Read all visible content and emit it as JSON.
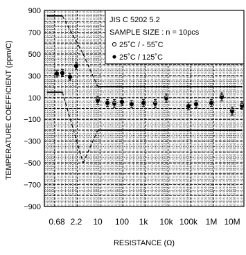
{
  "chart_data": {
    "type": "scatter",
    "xlabel": "RESISTANCE  (Ω)",
    "ylabel": "TEMPERATURE COEFFICIENT (ppm/C)",
    "ylim": [
      -900,
      900
    ],
    "yticks": [
      -900,
      -700,
      -500,
      -300,
      -100,
      100,
      300,
      500,
      700,
      900
    ],
    "ytick_labels": [
      "−900",
      "−700",
      "−500",
      "−300",
      "−100",
      "100",
      "300",
      "500",
      "700",
      "900"
    ],
    "x_categories": [
      "0.68",
      "2.2",
      "10",
      "100",
      "1k",
      "10k",
      "100k",
      "1M",
      "10M"
    ],
    "xtick_labels": [
      "0.68",
      "2.2",
      "10",
      "100",
      "1k",
      "10k",
      "100k",
      "1M",
      "10M"
    ],
    "grid": true,
    "legend": {
      "position": "top-right",
      "lines": [
        "JIS C 5202 5.2",
        "SAMPLE SIZE : n = 10pcs"
      ],
      "entries": [
        "25˚C / - 55˚C",
        "25˚C / 125˚C"
      ]
    },
    "series": [
      {
        "name": "25˚C / - 55˚C",
        "marker": "open-circle",
        "points": [
          {
            "x": "0.68",
            "y": 320
          },
          {
            "x": "1",
            "y": 325
          },
          {
            "x": "1.5",
            "y": 290
          },
          {
            "x": "2.2",
            "y": 390
          },
          {
            "x": "10",
            "y": 80
          },
          {
            "x": "22",
            "y": 50
          },
          {
            "x": "47",
            "y": 50
          },
          {
            "x": "100",
            "y": 60
          },
          {
            "x": "220",
            "y": 40
          },
          {
            "x": "1k",
            "y": 50
          },
          {
            "x": "4.7k",
            "y": 50
          },
          {
            "x": "10k",
            "y": 100
          },
          {
            "x": "100k",
            "y": 20
          },
          {
            "x": "220k",
            "y": 40
          },
          {
            "x": "1M",
            "y": 50
          },
          {
            "x": "4.7M",
            "y": 110
          },
          {
            "x": "10M",
            "y": -20
          },
          {
            "x": "22M",
            "y": 30
          }
        ]
      },
      {
        "name": "25˚C / 125˚C",
        "marker": "filled-circle",
        "points": [
          {
            "x": "0.68",
            "y": 320
          },
          {
            "x": "1",
            "y": 325
          },
          {
            "x": "1.5",
            "y": 290
          },
          {
            "x": "2.2",
            "y": 390
          },
          {
            "x": "10",
            "y": 70
          },
          {
            "x": "22",
            "y": 50
          },
          {
            "x": "47",
            "y": 40
          },
          {
            "x": "100",
            "y": 60
          },
          {
            "x": "220",
            "y": 40
          },
          {
            "x": "1k",
            "y": 50
          },
          {
            "x": "4.7k",
            "y": 40
          },
          {
            "x": "10k",
            "y": 90
          },
          {
            "x": "100k",
            "y": 20
          },
          {
            "x": "220k",
            "y": 40
          },
          {
            "x": "1M",
            "y": 50
          },
          {
            "x": "4.7M",
            "y": 100
          },
          {
            "x": "10M",
            "y": -30
          },
          {
            "x": "22M",
            "y": 20
          }
        ]
      }
    ],
    "spec_limits": {
      "upper": [
        {
          "x": "0.47",
          "y": 850
        },
        {
          "x": "1",
          "y": 850
        },
        {
          "x": "3.3",
          "y": 500
        },
        {
          "x": "10",
          "y": 200
        },
        {
          "x": "22M",
          "y": 200
        }
      ],
      "lower": [
        {
          "x": "0.47",
          "y": 150
        },
        {
          "x": "1",
          "y": 150
        },
        {
          "x": "3.3",
          "y": -500
        },
        {
          "x": "10",
          "y": -200
        },
        {
          "x": "22M",
          "y": -200
        }
      ]
    }
  }
}
